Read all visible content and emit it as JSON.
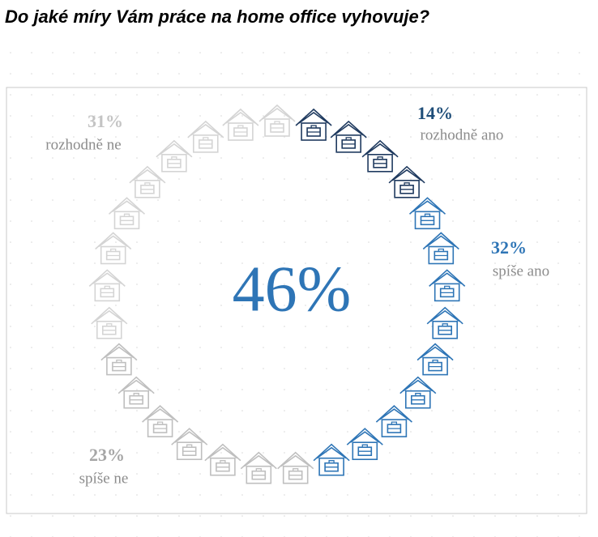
{
  "chart_data": {
    "type": "icon-ring",
    "title": "Do jaké míry Vám práce na home office vyhovuje?",
    "center_label": "46%",
    "categories": [
      "rozhodně ano",
      "spíše ano",
      "spíše ne",
      "rozhodně ne"
    ],
    "values": [
      14,
      32,
      23,
      31
    ],
    "value_labels": [
      "14%",
      "32%",
      "23%",
      "31%"
    ],
    "colors": [
      "#1f3a5f",
      "#2e75b6",
      "#bfbfbf",
      "#d4d4d4"
    ],
    "label_colors": [
      "#1f4e79",
      "#2e75b6",
      "#a6a6a6",
      "#c4c4c4"
    ]
  }
}
